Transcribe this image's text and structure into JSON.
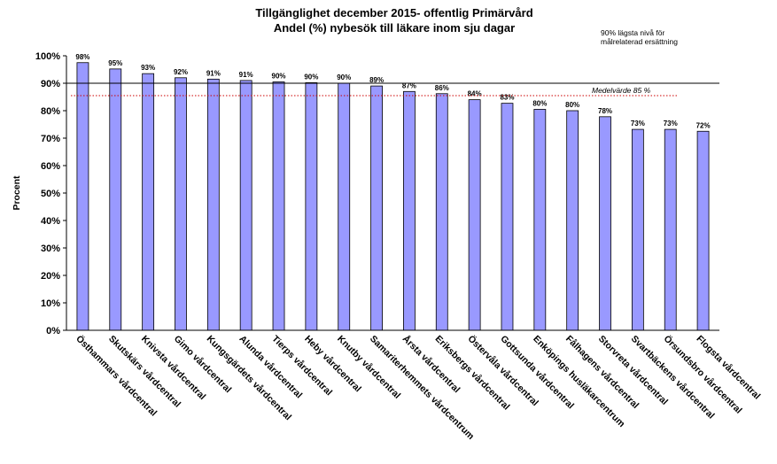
{
  "chart_data": {
    "type": "bar",
    "title": "Tillgänglighet december 2015- offentlig Primärvård",
    "subtitle": "Andel (%)  nybesök till läkare inom sju dagar",
    "ylabel": "Procent",
    "ylim": [
      0,
      100
    ],
    "yticks": [
      "0%",
      "10%",
      "20%",
      "30%",
      "40%",
      "50%",
      "60%",
      "70%",
      "80%",
      "90%",
      "100%"
    ],
    "grid": false,
    "categories": [
      "Östhammars vårdcentral",
      "Skutskärs vårdcentral",
      "Knivsta vårdcentral",
      "Gimo vårdcentral",
      "Kungsgärdets vårdcentral",
      "Alunda vårdcentral",
      "Tierps vårdcentral",
      "Heby vårdcentral",
      "Knutby vårdcentral",
      "Samariterhemmets vårdcentrum",
      "Årsta vårdcentral",
      "Eriksbergs vårdcentral",
      "Östervåla vårdcentral",
      "Gottsunda vårdcentral",
      "Enköpings husläkarcentrum",
      "Fålhagens vårdcentral",
      "Storvreta vårdcentral",
      "Svartbäckens vårdcentral",
      "Örsundsbro vårdcentral",
      "Flogsta vårdcentral"
    ],
    "values": [
      97.5,
      95.2,
      93.5,
      92,
      91.5,
      91,
      90.5,
      90.2,
      90,
      89,
      87,
      86.2,
      84,
      82.7,
      80.5,
      80,
      77.8,
      73.2,
      73.2,
      72.5
    ],
    "data_labels": [
      "98%",
      "95%",
      "93%",
      "92%",
      "91%",
      "91%",
      "90%",
      "90%",
      "90%",
      "89%",
      "87%",
      "86%",
      "84%",
      "83%",
      "80%",
      "80%",
      "78%",
      "73%",
      "73%",
      "72%"
    ],
    "reference_lines": [
      {
        "value": 90,
        "label": "90% lägsta nivå för måirelaterad ersättning",
        "label_lines": [
          "90% lägsta nivå för",
          "målrelaterad ersättning"
        ],
        "color": "#000000",
        "style": "solid"
      },
      {
        "value": 85.5,
        "label": "Medelvärde 85 %",
        "color": "#cc0000",
        "style": "dotted"
      }
    ],
    "colors": {
      "bar_fill": "#9999ff",
      "bar_stroke": "#000000",
      "average_line": "#cc0000",
      "target_line": "#000000"
    }
  }
}
